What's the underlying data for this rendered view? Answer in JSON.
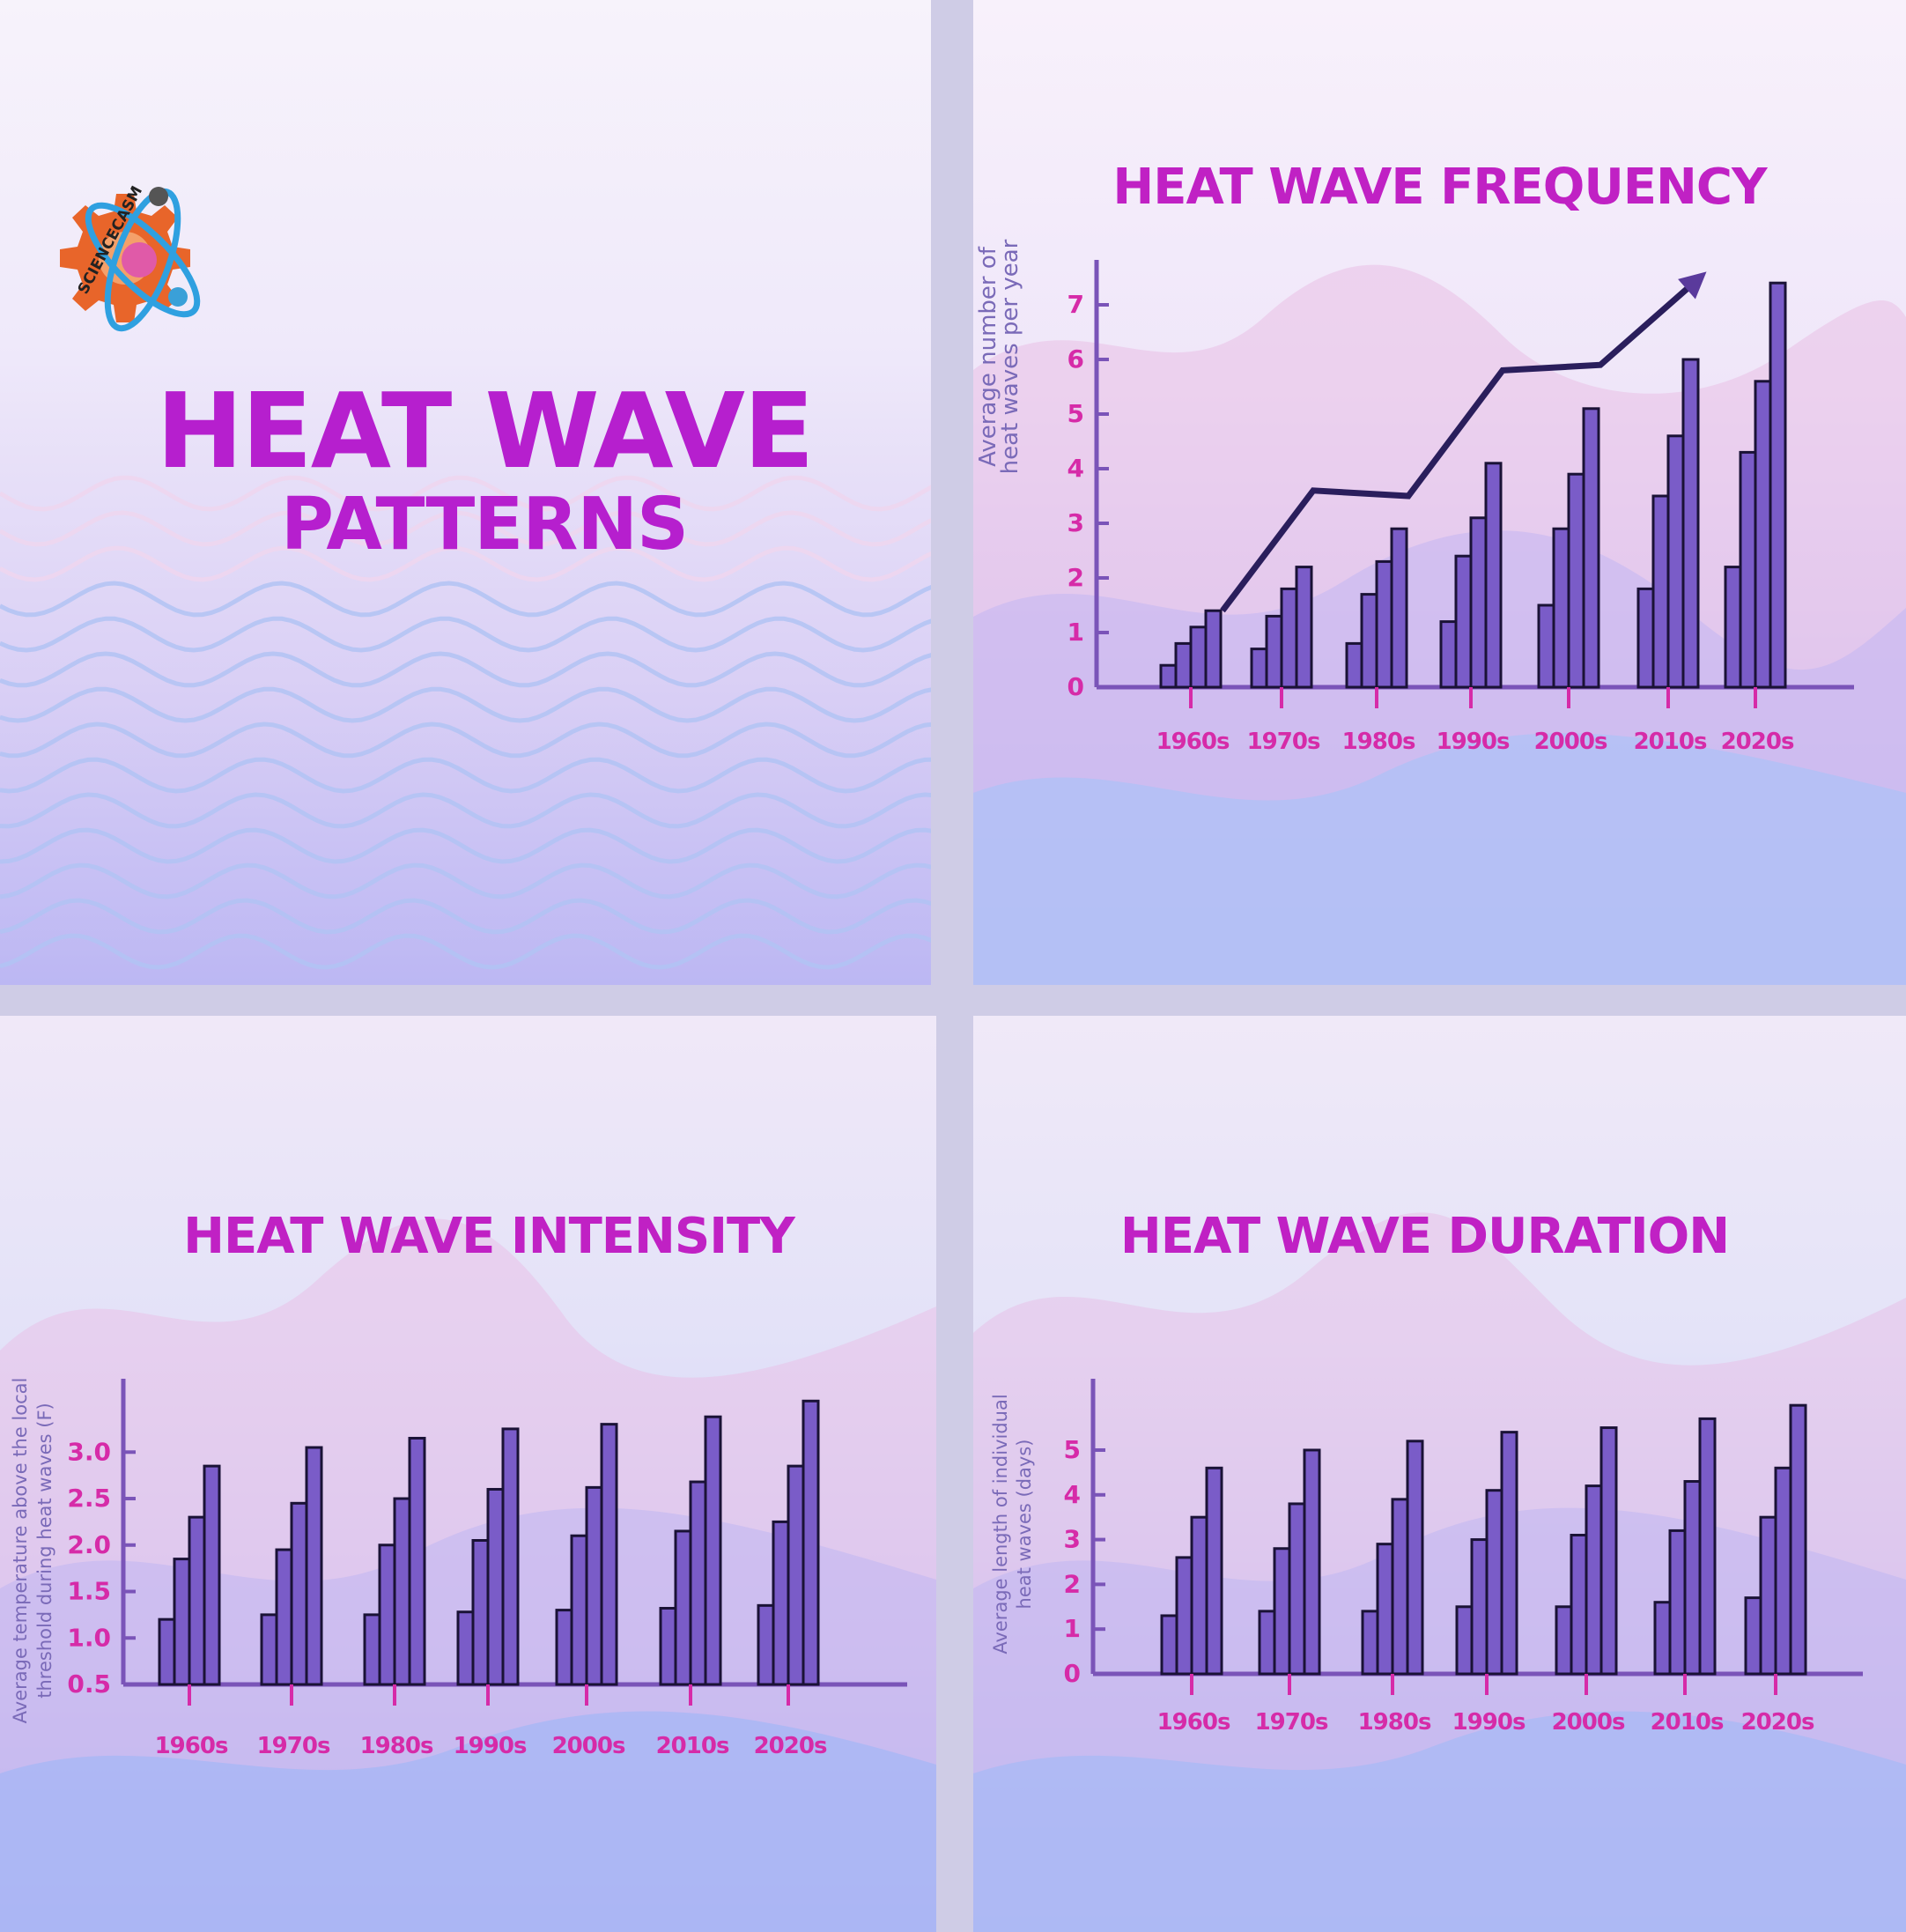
{
  "main_title": {
    "line1": "HEAT WAVE",
    "line2": "PATTERNS"
  },
  "logo": {
    "text": "SCIENCECASM",
    "icon": "gear-atom-brain-logo"
  },
  "colors": {
    "title": "#b61fce",
    "bar_fill": "#7a5cc8",
    "axis": "#7a54b8",
    "tick_label": "#d62ba8",
    "trend": "#2a1e5c"
  },
  "chart_data": [
    {
      "type": "bar",
      "title": "HEAT WAVE FREQUENCY",
      "ylabel_lines": [
        "Average number of",
        "heat waves per year"
      ],
      "categories": [
        "1960s",
        "1970s",
        "1980s",
        "1990s",
        "2000s",
        "2010s",
        "2020s"
      ],
      "series": [
        {
          "values": [
            0.4,
            0.7,
            0.8,
            1.2,
            1.5,
            1.8,
            2.2
          ]
        },
        {
          "values": [
            0.8,
            1.3,
            1.7,
            2.4,
            2.9,
            3.5,
            4.3
          ]
        },
        {
          "values": [
            1.1,
            1.8,
            2.3,
            3.1,
            3.9,
            4.6,
            5.6
          ]
        },
        {
          "values": [
            1.4,
            2.2,
            2.9,
            4.1,
            5.1,
            6.0,
            7.4
          ]
        }
      ],
      "trend_line": [
        1.4,
        3.6,
        3.5,
        5.8,
        5.9,
        7.5
      ],
      "yticks": [
        "0",
        "1",
        "2",
        "3",
        "4",
        "5",
        "6",
        "7"
      ],
      "ylim": [
        0,
        7.5
      ],
      "grid": false,
      "legend": "none"
    },
    {
      "type": "bar",
      "title": "HEAT WAVE INTENSITY",
      "ylabel_lines": [
        "Average temperature above the  local",
        "threshold during heat waves (F)"
      ],
      "categories": [
        "1960s",
        "1970s",
        "1980s",
        "1990s",
        "2000s",
        "2010s",
        "2020s"
      ],
      "series": [
        {
          "values": [
            1.2,
            1.25,
            1.25,
            1.28,
            1.3,
            1.32,
            1.35
          ]
        },
        {
          "values": [
            1.85,
            1.95,
            2.0,
            2.05,
            2.1,
            2.15,
            2.25
          ]
        },
        {
          "values": [
            2.3,
            2.45,
            2.5,
            2.6,
            2.62,
            2.68,
            2.85
          ]
        },
        {
          "values": [
            2.85,
            3.05,
            3.15,
            3.25,
            3.3,
            3.38,
            3.55
          ]
        }
      ],
      "yticks": [
        "0.5",
        "1.0",
        "1.5",
        "2.0",
        "2.5",
        "3.0"
      ],
      "ylim": [
        0.5,
        3.6
      ],
      "grid": false,
      "legend": "none"
    },
    {
      "type": "bar",
      "title": "HEAT WAVE DURATION",
      "ylabel_lines": [
        "Average length of individual",
        "heat waves (days)"
      ],
      "categories": [
        "1960s",
        "1970s",
        "1980s",
        "1990s",
        "2000s",
        "2010s",
        "2020s"
      ],
      "series": [
        {
          "values": [
            1.3,
            1.4,
            1.4,
            1.5,
            1.5,
            1.6,
            1.7
          ]
        },
        {
          "values": [
            2.6,
            2.8,
            2.9,
            3.0,
            3.1,
            3.2,
            3.5
          ]
        },
        {
          "values": [
            3.5,
            3.8,
            3.9,
            4.1,
            4.2,
            4.3,
            4.6
          ]
        },
        {
          "values": [
            4.6,
            5.0,
            5.2,
            5.4,
            5.5,
            5.7,
            6.0
          ]
        }
      ],
      "yticks": [
        "0",
        "1",
        "2",
        "3",
        "4",
        "5"
      ],
      "ylim": [
        0,
        6.2
      ],
      "grid": false,
      "legend": "none"
    }
  ]
}
